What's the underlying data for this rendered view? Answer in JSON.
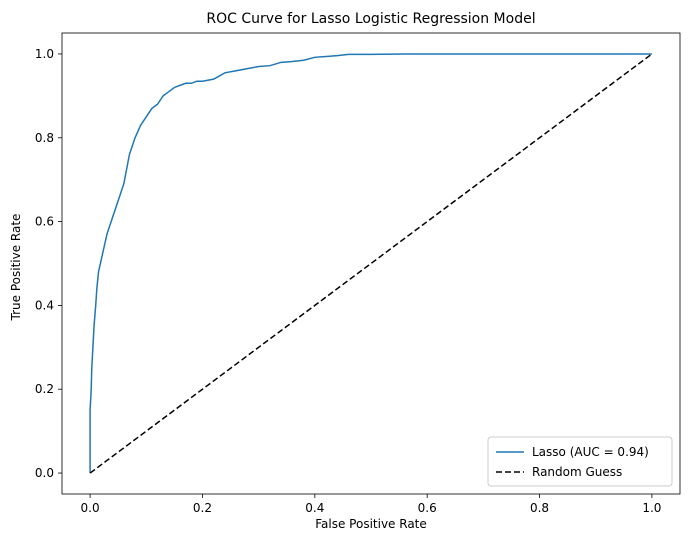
{
  "chart_data": {
    "type": "line",
    "title": "ROC Curve for Lasso Logistic Regression Model",
    "xlabel": "False Positive Rate",
    "ylabel": "True Positive Rate",
    "xlim": [
      -0.05,
      1.05
    ],
    "ylim": [
      -0.05,
      1.05
    ],
    "xticks": [
      0.0,
      0.2,
      0.4,
      0.6,
      0.8,
      1.0
    ],
    "yticks": [
      0.0,
      0.2,
      0.4,
      0.6,
      0.8,
      1.0
    ],
    "xtick_labels": [
      "0.0",
      "0.2",
      "0.4",
      "0.6",
      "0.8",
      "1.0"
    ],
    "ytick_labels": [
      "0.0",
      "0.2",
      "0.4",
      "0.6",
      "0.8",
      "1.0"
    ],
    "grid": false,
    "legend_position": "bottom-right",
    "series": [
      {
        "name": "Lasso (AUC = 0.94)",
        "color": "#1f77b4",
        "style": "solid",
        "x": [
          0.0,
          0.0,
          0.002,
          0.003,
          0.005,
          0.007,
          0.01,
          0.012,
          0.015,
          0.02,
          0.025,
          0.03,
          0.04,
          0.05,
          0.06,
          0.07,
          0.08,
          0.09,
          0.1,
          0.11,
          0.12,
          0.13,
          0.14,
          0.15,
          0.16,
          0.17,
          0.18,
          0.19,
          0.2,
          0.22,
          0.24,
          0.26,
          0.28,
          0.3,
          0.32,
          0.34,
          0.36,
          0.38,
          0.4,
          0.42,
          0.44,
          0.46,
          0.5,
          0.56,
          0.6,
          0.7,
          0.8,
          0.9,
          1.0
        ],
        "y": [
          0.0,
          0.15,
          0.2,
          0.25,
          0.3,
          0.35,
          0.4,
          0.44,
          0.48,
          0.51,
          0.54,
          0.57,
          0.61,
          0.65,
          0.69,
          0.76,
          0.8,
          0.83,
          0.85,
          0.87,
          0.88,
          0.9,
          0.91,
          0.92,
          0.925,
          0.93,
          0.93,
          0.935,
          0.935,
          0.94,
          0.955,
          0.96,
          0.965,
          0.97,
          0.972,
          0.98,
          0.982,
          0.985,
          0.992,
          0.994,
          0.996,
          0.999,
          0.999,
          1.0,
          1.0,
          1.0,
          1.0,
          1.0,
          1.0
        ]
      },
      {
        "name": "Random Guess",
        "color": "#000000",
        "style": "dashed",
        "x": [
          0.0,
          1.0
        ],
        "y": [
          0.0,
          1.0
        ]
      }
    ]
  }
}
